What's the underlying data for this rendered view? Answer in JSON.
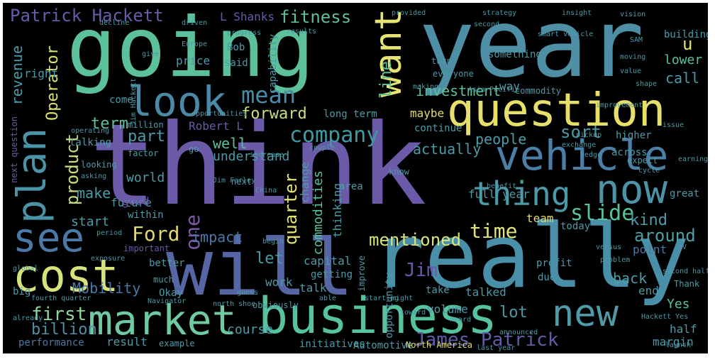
{
  "words": [
    {
      "text": "think",
      "color": "#6a5aa8"
    },
    {
      "text": "year",
      "color": "#4e8fa6"
    },
    {
      "text": "going",
      "color": "#5cc19a"
    },
    {
      "text": "will",
      "color": "#5665a4"
    },
    {
      "text": "really",
      "color": "#4a8fa8"
    },
    {
      "text": "question",
      "color": "#e6e06a"
    },
    {
      "text": "business",
      "color": "#56c2a0"
    },
    {
      "text": "market",
      "color": "#6fc9a1"
    },
    {
      "text": "vehicle",
      "color": "#4b7fa6"
    },
    {
      "text": "cost",
      "color": "#d7e27a"
    },
    {
      "text": "look",
      "color": "#4a8aa6"
    },
    {
      "text": "plan",
      "color": "#4b93a6"
    },
    {
      "text": "want",
      "color": "#e7e372"
    },
    {
      "text": "thing",
      "color": "#4b9aa8"
    },
    {
      "text": "now",
      "color": "#4c93a6"
    },
    {
      "text": "see",
      "color": "#4b79a6"
    },
    {
      "text": "new",
      "color": "#4f9aa8"
    },
    {
      "text": "company",
      "color": "#3f9aa4"
    },
    {
      "text": "Patrick Hackett",
      "color": "#6a5aa8"
    },
    {
      "text": "fitness",
      "color": "#5fbf9a"
    },
    {
      "text": "James Patrick",
      "color": "#5d5ea6"
    },
    {
      "text": "mean",
      "color": "#4b8aa8"
    },
    {
      "text": "forward",
      "color": "#c9df7e"
    },
    {
      "text": "Ford",
      "color": "#e0d970"
    },
    {
      "text": "mentioned",
      "color": "#d8e476"
    },
    {
      "text": "slide",
      "color": "#5ac29c"
    },
    {
      "text": "around",
      "color": "#4d9fa8"
    },
    {
      "text": "first",
      "color": "#8fd59a"
    },
    {
      "text": "billion",
      "color": "#4f8fa6"
    },
    {
      "text": "product",
      "color": "#c6df7c"
    },
    {
      "text": "one",
      "color": "#7a5aa8"
    },
    {
      "text": "quarter",
      "color": "#e5e372"
    },
    {
      "text": "time",
      "color": "#e0e47a"
    },
    {
      "text": "kind",
      "color": "#4e9aa8"
    },
    {
      "text": "investment",
      "color": "#5dc09c"
    },
    {
      "text": "people",
      "color": "#4b9ba8"
    },
    {
      "text": "sort",
      "color": "#4b9aa8"
    },
    {
      "text": "Operator",
      "color": "#dce36f"
    },
    {
      "text": "revenue",
      "color": "#4b9aa8"
    },
    {
      "text": "term",
      "color": "#5fbf9b"
    },
    {
      "text": "part",
      "color": "#4b9aa8"
    },
    {
      "text": "well",
      "color": "#5ac29b"
    },
    {
      "text": "line",
      "color": "#5dc09b"
    },
    {
      "text": "Jim",
      "color": "#6a5aa8"
    },
    {
      "text": "lot",
      "color": "#4b9aa8"
    },
    {
      "text": "Mobility",
      "color": "#4b79a6"
    },
    {
      "text": "performance",
      "color": "#4b79a6"
    },
    {
      "text": "Robert L",
      "color": "#6a5aa8"
    },
    {
      "text": "L Shanks",
      "color": "#6a5aa8"
    },
    {
      "text": "impact",
      "color": "#4b79a6"
    },
    {
      "text": "let",
      "color": "#4b9aa8"
    },
    {
      "text": "call",
      "color": "#4b9aa8"
    },
    {
      "text": "u",
      "color": "#e0e472"
    },
    {
      "text": "lower",
      "color": "#5ac29b"
    },
    {
      "text": "building",
      "color": "#4b9aa8"
    },
    {
      "text": "back",
      "color": "#4b9aa8"
    },
    {
      "text": "end",
      "color": "#4b9aa8"
    },
    {
      "text": "point",
      "color": "#4b79a6"
    },
    {
      "text": "Yes",
      "color": "#5ac29b"
    },
    {
      "text": "half",
      "color": "#4b9aa8"
    },
    {
      "text": "margin",
      "color": "#4b9aa8"
    },
    {
      "text": "course",
      "color": "#4b9aa8"
    },
    {
      "text": "result",
      "color": "#4b9aa8"
    },
    {
      "text": "example",
      "color": "#4b9aa8"
    },
    {
      "text": "initiatives",
      "color": "#4b9aa8"
    },
    {
      "text": "Automotive",
      "color": "#4b9aa8"
    },
    {
      "text": "North America",
      "color": "#e0d970"
    },
    {
      "text": "actually",
      "color": "#4b9aa8"
    },
    {
      "text": "maybe",
      "color": "#e0d970"
    },
    {
      "text": "continue",
      "color": "#4b9aa8"
    },
    {
      "text": "understand",
      "color": "#4b9aa8"
    },
    {
      "text": "world",
      "color": "#4b9aa8"
    },
    {
      "text": "make",
      "color": "#4b9aa8"
    },
    {
      "text": "future",
      "color": "#4b9aa8"
    },
    {
      "text": "start",
      "color": "#4b9aa8"
    },
    {
      "text": "within",
      "color": "#4b9aa8"
    },
    {
      "text": "good",
      "color": "#6a5aa8"
    },
    {
      "text": "team",
      "color": "#e0d970"
    },
    {
      "text": "commodities",
      "color": "#5ac29b"
    },
    {
      "text": "change",
      "color": "#4b9aa8"
    },
    {
      "text": "thinking",
      "color": "#4b9aa8"
    },
    {
      "text": "capital",
      "color": "#4b9aa8"
    },
    {
      "text": "getting",
      "color": "#4b9aa8"
    },
    {
      "text": "talk",
      "color": "#4b9aa8"
    },
    {
      "text": "work",
      "color": "#4b9aa8"
    },
    {
      "text": "volume",
      "color": "#4b9aa8"
    },
    {
      "text": "talked",
      "color": "#4b9aa8"
    },
    {
      "text": "full year",
      "color": "#4b9aa8"
    },
    {
      "text": "today",
      "color": "#4b9aa8"
    },
    {
      "text": "great",
      "color": "#4b9aa8"
    },
    {
      "text": "price",
      "color": "#4b9aa8"
    },
    {
      "text": "said",
      "color": "#4b9aa8"
    },
    {
      "text": "Bob",
      "color": "#4b9aa8"
    },
    {
      "text": "capability",
      "color": "#4b9aa8"
    },
    {
      "text": "right",
      "color": "#4b9aa8"
    },
    {
      "text": "come",
      "color": "#4b9aa8"
    },
    {
      "text": "long term",
      "color": "#4b9aa8"
    },
    {
      "text": "way",
      "color": "#4b9aa8"
    },
    {
      "text": "commodity",
      "color": "#4b9aa8"
    },
    {
      "text": "something",
      "color": "#4b9aa8"
    },
    {
      "text": "higher",
      "color": "#4b9aa8"
    },
    {
      "text": "across",
      "color": "#4b9aa8"
    },
    {
      "text": "expect",
      "color": "#4b9aa8"
    },
    {
      "text": "next",
      "color": "#4b9aa8"
    },
    {
      "text": "million",
      "color": "#4b9aa8"
    },
    {
      "text": "factor",
      "color": "#4b9aa8"
    },
    {
      "text": "looking",
      "color": "#4b9aa8"
    },
    {
      "text": "talking",
      "color": "#4b9aa8"
    },
    {
      "text": "better",
      "color": "#4b9aa8"
    },
    {
      "text": "much",
      "color": "#4b9aa8"
    },
    {
      "text": "Okay",
      "color": "#4b9aa8"
    },
    {
      "text": "big",
      "color": "#4b9aa8"
    },
    {
      "text": "important",
      "color": "#6a5aa8"
    },
    {
      "text": "obviously",
      "color": "#4b9aa8"
    },
    {
      "text": "profit",
      "color": "#4b9aa8"
    },
    {
      "text": "due",
      "color": "#4b9aa8"
    },
    {
      "text": "take",
      "color": "#4b9aa8"
    },
    {
      "text": "opportunity",
      "color": "#4b9aa8"
    },
    {
      "text": "improve",
      "color": "#4b9aa8"
    },
    {
      "text": "area",
      "color": "#4b9aa8"
    },
    {
      "text": "know",
      "color": "#4b9aa8"
    },
    {
      "text": "everyone",
      "color": "#4b9aa8"
    },
    {
      "text": "turn",
      "color": "#4b9aa8"
    },
    {
      "text": "progress",
      "color": "#4b9aa8"
    },
    {
      "text": "EV",
      "color": "#4b9aa8"
    },
    {
      "text": "Thank",
      "color": "#4b9aa8"
    },
    {
      "text": "China",
      "color": "#4b9aa8"
    },
    {
      "text": "go",
      "color": "#4b9aa8"
    },
    {
      "text": "strategy",
      "color": "#4b9aa8"
    },
    {
      "text": "smart vehicle",
      "color": "#4b9aa8"
    },
    {
      "text": "vision",
      "color": "#4b9aa8"
    },
    {
      "text": "give",
      "color": "#4b9aa8"
    },
    {
      "text": "Europe",
      "color": "#4b9aa8"
    },
    {
      "text": "driven",
      "color": "#4b9aa8"
    },
    {
      "text": "decline",
      "color": "#4b9aa8"
    },
    {
      "text": "provided",
      "color": "#4b9aa8"
    },
    {
      "text": "insight",
      "color": "#4b9aa8"
    },
    {
      "text": "Asia Pacific",
      "color": "#4b9aa8"
    },
    {
      "text": "cycle",
      "color": "#4b9aa8"
    },
    {
      "text": "launch",
      "color": "#4b9aa8"
    },
    {
      "text": "fourth quarter",
      "color": "#4b9aa8"
    },
    {
      "text": "next question",
      "color": "#6a5aa8"
    },
    {
      "text": "Jim Hackett",
      "color": "#4b9aa8"
    },
    {
      "text": "benefit",
      "color": "#4b9aa8"
    },
    {
      "text": "issue",
      "color": "#4b9aa8"
    },
    {
      "text": "earning",
      "color": "#4b9aa8"
    },
    {
      "text": "exchange",
      "color": "#4b9aa8"
    },
    {
      "text": "hedge",
      "color": "#4b9aa8"
    },
    {
      "text": "pickup",
      "color": "#4b9aa8"
    },
    {
      "text": "opportunities",
      "color": "#4b9aa8"
    },
    {
      "text": "operating",
      "color": "#4b9aa8"
    },
    {
      "text": "asking",
      "color": "#4b9aa8"
    },
    {
      "text": "exposure",
      "color": "#4b9aa8"
    },
    {
      "text": "global",
      "color": "#4b9aa8"
    },
    {
      "text": "period",
      "color": "#4b9aa8"
    },
    {
      "text": "begin",
      "color": "#4b9aa8"
    },
    {
      "text": "couple",
      "color": "#4b9aa8"
    },
    {
      "text": "increase",
      "color": "#4b9aa8"
    },
    {
      "text": "versus",
      "color": "#4b9aa8"
    },
    {
      "text": "problem",
      "color": "#4b9aa8"
    },
    {
      "text": "second half",
      "color": "#4b9aa8"
    },
    {
      "text": "last year",
      "color": "#4b9aa8"
    },
    {
      "text": "guess",
      "color": "#4b9aa8"
    },
    {
      "text": "Navigator",
      "color": "#4b9aa8"
    },
    {
      "text": "north shoe",
      "color": "#4b9aa8"
    },
    {
      "text": "Jim Farley",
      "color": "#4b9aa8"
    },
    {
      "text": "heard",
      "color": "#4b9aa8"
    },
    {
      "text": "improvement",
      "color": "#4b9aa8"
    },
    {
      "text": "Hackett Yes",
      "color": "#4b9aa8"
    },
    {
      "text": "announced",
      "color": "#4b9aa8"
    },
    {
      "text": "moving",
      "color": "#4b9aa8"
    },
    {
      "text": "value",
      "color": "#4b9aa8"
    },
    {
      "text": "making",
      "color": "#4b9aa8"
    },
    {
      "text": "shape",
      "color": "#4b9aa8"
    },
    {
      "text": "already",
      "color": "#4b9aa8"
    },
    {
      "text": "able",
      "color": "#4b9aa8"
    },
    {
      "text": "starting",
      "color": "#4b9aa8"
    },
    {
      "text": "might",
      "color": "#4b9aa8"
    },
    {
      "text": "toward",
      "color": "#4b9aa8"
    },
    {
      "text": "results",
      "color": "#4b9aa8"
    },
    {
      "text": "second",
      "color": "#4b9aa8"
    },
    {
      "text": "SAM",
      "color": "#4b9aa8"
    }
  ]
}
